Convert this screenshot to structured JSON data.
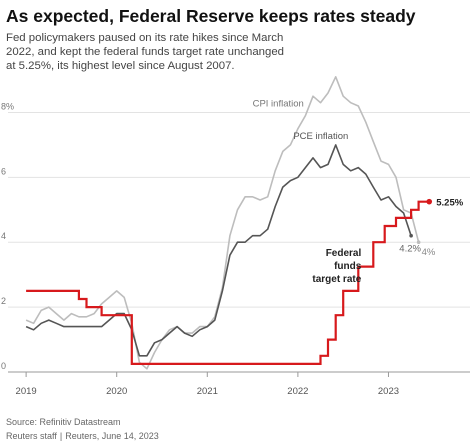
{
  "title": "As expected, Federal Reserve keeps rates steady",
  "subtitle": "Fed policymakers paused on its rate hikes since March 2022, and kept the federal funds target rate unchanged at 5.25%, its highest level since August 2007.",
  "source": "Source: Refinitiv Datastream",
  "credit_staff": "Reuters staff",
  "credit_separator": "|",
  "credit_date": "Reuters, June 14, 2023",
  "colors": {
    "cpi": "#bdbdbd",
    "pce": "#555555",
    "fed": "#d7191c",
    "grid": "#e3e3e3",
    "axis": "#9a9a9a"
  },
  "chart_data": {
    "type": "line",
    "xlim": [
      2018.8,
      2023.9
    ],
    "ylim": [
      0,
      9
    ],
    "x_ticks": [
      {
        "value": 2019,
        "label": "2019"
      },
      {
        "value": 2020,
        "label": "2020"
      },
      {
        "value": 2021,
        "label": "2021"
      },
      {
        "value": 2022,
        "label": "2022"
      },
      {
        "value": 2023,
        "label": "2023"
      }
    ],
    "y_ticks": [
      {
        "value": 0,
        "label": "0"
      },
      {
        "value": 2,
        "label": "2"
      },
      {
        "value": 4,
        "label": "4"
      },
      {
        "value": 6,
        "label": "6"
      },
      {
        "value": 8,
        "label": "8%"
      }
    ],
    "grid": "horizontal",
    "series": [
      {
        "name": "CPI inflation",
        "key": "cpi",
        "label_text": "CPI inflation",
        "end_label": "4%",
        "points": [
          [
            2019.0,
            1.6
          ],
          [
            2019.083,
            1.5
          ],
          [
            2019.167,
            1.9
          ],
          [
            2019.25,
            2.0
          ],
          [
            2019.333,
            1.8
          ],
          [
            2019.417,
            1.6
          ],
          [
            2019.5,
            1.8
          ],
          [
            2019.583,
            1.7
          ],
          [
            2019.667,
            1.7
          ],
          [
            2019.75,
            1.8
          ],
          [
            2019.833,
            2.1
          ],
          [
            2019.917,
            2.3
          ],
          [
            2020.0,
            2.5
          ],
          [
            2020.083,
            2.3
          ],
          [
            2020.167,
            1.5
          ],
          [
            2020.25,
            0.3
          ],
          [
            2020.333,
            0.1
          ],
          [
            2020.417,
            0.6
          ],
          [
            2020.5,
            1.0
          ],
          [
            2020.583,
            1.3
          ],
          [
            2020.667,
            1.4
          ],
          [
            2020.75,
            1.2
          ],
          [
            2020.833,
            1.2
          ],
          [
            2020.917,
            1.4
          ],
          [
            2021.0,
            1.4
          ],
          [
            2021.083,
            1.7
          ],
          [
            2021.167,
            2.6
          ],
          [
            2021.25,
            4.2
          ],
          [
            2021.333,
            5.0
          ],
          [
            2021.417,
            5.4
          ],
          [
            2021.5,
            5.4
          ],
          [
            2021.583,
            5.3
          ],
          [
            2021.667,
            5.4
          ],
          [
            2021.75,
            6.2
          ],
          [
            2021.833,
            6.8
          ],
          [
            2021.917,
            7.0
          ],
          [
            2022.0,
            7.5
          ],
          [
            2022.083,
            7.9
          ],
          [
            2022.167,
            8.5
          ],
          [
            2022.25,
            8.3
          ],
          [
            2022.333,
            8.6
          ],
          [
            2022.417,
            9.1
          ],
          [
            2022.5,
            8.5
          ],
          [
            2022.583,
            8.3
          ],
          [
            2022.667,
            8.2
          ],
          [
            2022.75,
            7.7
          ],
          [
            2022.833,
            7.1
          ],
          [
            2022.917,
            6.5
          ],
          [
            2023.0,
            6.4
          ],
          [
            2023.083,
            6.0
          ],
          [
            2023.167,
            5.0
          ],
          [
            2023.25,
            4.9
          ],
          [
            2023.333,
            4.0
          ]
        ]
      },
      {
        "name": "PCE inflation",
        "key": "pce",
        "label_text": "PCE inflation",
        "end_label": "4.2%",
        "points": [
          [
            2019.0,
            1.4
          ],
          [
            2019.083,
            1.3
          ],
          [
            2019.167,
            1.5
          ],
          [
            2019.25,
            1.6
          ],
          [
            2019.333,
            1.5
          ],
          [
            2019.417,
            1.4
          ],
          [
            2019.5,
            1.4
          ],
          [
            2019.583,
            1.4
          ],
          [
            2019.667,
            1.4
          ],
          [
            2019.75,
            1.4
          ],
          [
            2019.833,
            1.4
          ],
          [
            2019.917,
            1.6
          ],
          [
            2020.0,
            1.8
          ],
          [
            2020.083,
            1.8
          ],
          [
            2020.167,
            1.3
          ],
          [
            2020.25,
            0.5
          ],
          [
            2020.333,
            0.5
          ],
          [
            2020.417,
            0.9
          ],
          [
            2020.5,
            1.0
          ],
          [
            2020.583,
            1.2
          ],
          [
            2020.667,
            1.4
          ],
          [
            2020.75,
            1.2
          ],
          [
            2020.833,
            1.1
          ],
          [
            2020.917,
            1.3
          ],
          [
            2021.0,
            1.4
          ],
          [
            2021.083,
            1.6
          ],
          [
            2021.167,
            2.5
          ],
          [
            2021.25,
            3.6
          ],
          [
            2021.333,
            4.0
          ],
          [
            2021.417,
            4.0
          ],
          [
            2021.5,
            4.2
          ],
          [
            2021.583,
            4.2
          ],
          [
            2021.667,
            4.4
          ],
          [
            2021.75,
            5.1
          ],
          [
            2021.833,
            5.7
          ],
          [
            2021.917,
            5.9
          ],
          [
            2022.0,
            6.0
          ],
          [
            2022.083,
            6.3
          ],
          [
            2022.167,
            6.6
          ],
          [
            2022.25,
            6.3
          ],
          [
            2022.333,
            6.4
          ],
          [
            2022.417,
            7.0
          ],
          [
            2022.5,
            6.4
          ],
          [
            2022.583,
            6.2
          ],
          [
            2022.667,
            6.3
          ],
          [
            2022.75,
            6.1
          ],
          [
            2022.833,
            5.7
          ],
          [
            2022.917,
            5.3
          ],
          [
            2023.0,
            5.4
          ],
          [
            2023.083,
            5.1
          ],
          [
            2023.167,
            4.9
          ],
          [
            2023.25,
            4.2
          ]
        ]
      },
      {
        "name": "Federal funds target rate",
        "key": "fed",
        "label_lines": [
          "Federal",
          "funds",
          "target rate"
        ],
        "end_label": "5.25%",
        "points": [
          [
            2019.0,
            2.5
          ],
          [
            2019.583,
            2.25
          ],
          [
            2019.667,
            2.0
          ],
          [
            2019.833,
            1.75
          ],
          [
            2020.167,
            0.25
          ],
          [
            2022.25,
            0.5
          ],
          [
            2022.333,
            1.0
          ],
          [
            2022.417,
            1.75
          ],
          [
            2022.5,
            2.5
          ],
          [
            2022.667,
            3.25
          ],
          [
            2022.833,
            4.0
          ],
          [
            2022.958,
            4.5
          ],
          [
            2023.083,
            4.75
          ],
          [
            2023.25,
            5.0
          ],
          [
            2023.333,
            5.25
          ],
          [
            2023.45,
            5.25
          ]
        ]
      }
    ]
  }
}
